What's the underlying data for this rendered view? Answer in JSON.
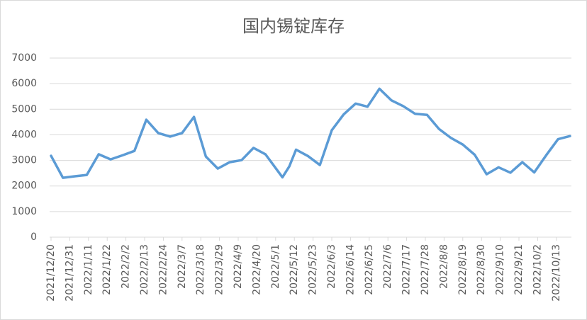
{
  "chart_data": {
    "type": "line",
    "title": "国内锡锭库存",
    "x": [
      "2021/12/20",
      "2021/12/27",
      "2022/1/3",
      "2022/1/10",
      "2022/1/17",
      "2022/1/24",
      "2022/1/31",
      "2022/2/7",
      "2022/2/14",
      "2022/2/21",
      "2022/2/28",
      "2022/3/7",
      "2022/3/14",
      "2022/3/21",
      "2022/3/28",
      "2022/4/4",
      "2022/4/11",
      "2022/4/18",
      "2022/4/25",
      "2022/5/5",
      "2022/5/9",
      "2022/5/13",
      "2022/5/20",
      "2022/5/27",
      "2022/6/3",
      "2022/6/10",
      "2022/6/17",
      "2022/6/24",
      "2022/7/1",
      "2022/7/8",
      "2022/7/15",
      "2022/7/22",
      "2022/7/29",
      "2022/8/5",
      "2022/8/12",
      "2022/8/19",
      "2022/8/26",
      "2022/9/2",
      "2022/9/9",
      "2022/9/16",
      "2022/9/23",
      "2022/9/30",
      "2022/10/7",
      "2022/10/14",
      "2022/10/21"
    ],
    "series": [
      {
        "color": "#5b9bd5",
        "values": [
          3180,
          2320,
          2380,
          2430,
          3240,
          3040,
          3200,
          3370,
          4590,
          4070,
          3930,
          4070,
          4700,
          3150,
          2680,
          2930,
          3010,
          3490,
          3240,
          2340,
          2760,
          3420,
          3170,
          2820,
          4180,
          4800,
          5220,
          5100,
          5800,
          5350,
          5120,
          4820,
          4780,
          4230,
          3880,
          3620,
          3220,
          2460,
          2730,
          2520,
          2930,
          2530,
          3200,
          3830,
          3950
        ]
      }
    ],
    "xlim": [
      "2021/12/20",
      "2022/10/21"
    ],
    "xticks": [
      "2021/12/20",
      "2021/12/31",
      "2022/1/11",
      "2022/1/22",
      "2022/2/2",
      "2022/2/13",
      "2022/2/24",
      "2022/3/7",
      "2022/3/18",
      "2022/3/29",
      "2022/4/9",
      "2022/4/20",
      "2022/5/1",
      "2022/5/12",
      "2022/5/23",
      "2022/6/3",
      "2022/6/14",
      "2022/6/25",
      "2022/7/6",
      "2022/7/17",
      "2022/7/28",
      "2022/8/8",
      "2022/8/19",
      "2022/8/30",
      "2022/9/10",
      "2022/9/21",
      "2022/10/2",
      "2022/10/13"
    ],
    "ylim": [
      0,
      7000
    ],
    "yticks": [
      0,
      1000,
      2000,
      3000,
      4000,
      5000,
      6000,
      7000
    ],
    "grid": true
  }
}
